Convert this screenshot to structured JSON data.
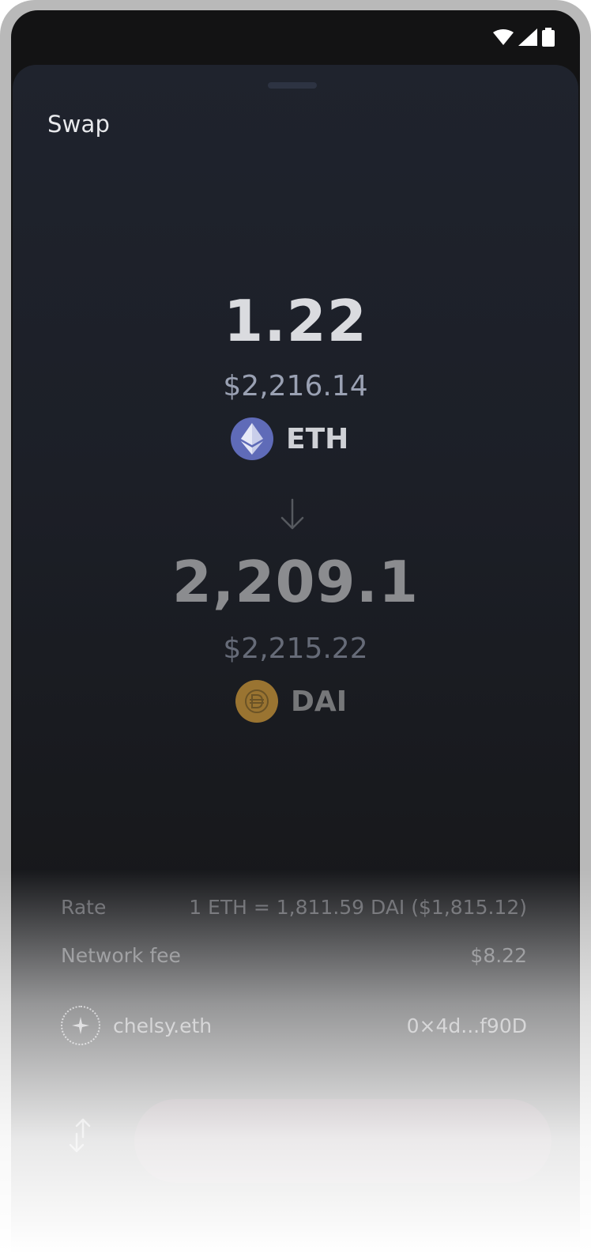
{
  "status_bar": {
    "icons": [
      "wifi-icon",
      "cellular-signal-icon",
      "battery-icon"
    ]
  },
  "sheet": {
    "title": "Swap"
  },
  "swap": {
    "from": {
      "amount": "1.22",
      "usd_value": "$2,216.14",
      "token_symbol": "ETH",
      "token_icon": "ethereum-logo-icon",
      "token_color": "#5f6bb8"
    },
    "arrow_icon": "arrow-down-icon",
    "to": {
      "amount": "2,209.1",
      "usd_value": "$2,215.22",
      "token_symbol": "DAI",
      "token_icon": "dai-logo-icon",
      "token_color": "#9a7431"
    }
  },
  "details": {
    "rate_label": "Rate",
    "rate_value": "1 ETH = 1,811.59 DAI ($1,815.12)",
    "fee_label": "Network fee",
    "fee_value": "$8.22"
  },
  "wallet": {
    "avatar_icon": "wallet-avatar-icon",
    "name": "chelsy.eth",
    "address": "0×4d...f90D"
  },
  "actions": {
    "switch_icon": "swap-direction-icon",
    "swap_button_label": ""
  }
}
